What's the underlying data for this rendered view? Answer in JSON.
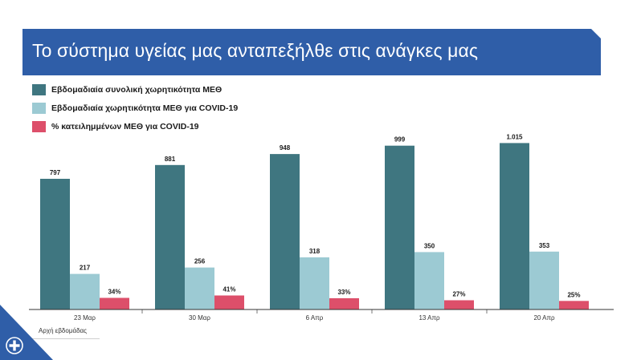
{
  "slide": {
    "title": "Το σύστημα υγείας μας ανταπεξήλθε στις ανάγκες μας"
  },
  "colors": {
    "banner": "#2f5ea8",
    "series": [
      "#3f7680",
      "#9ccad3",
      "#dd4f6a"
    ],
    "axis": "#333333",
    "corner_triangle": "#2f5ea8"
  },
  "legend": [
    {
      "label": "Εβδομαδιαία συνολική χωρητικότητα ΜΕΘ"
    },
    {
      "label": "Εβδομαδιαία χωρητικότητα ΜΕΘ για COVID-19"
    },
    {
      "label": "% κατειλημμένων ΜΕΘ για COVID-19"
    }
  ],
  "chart_data": {
    "type": "bar",
    "categories": [
      "23 Μαρ",
      "30 Μαρ",
      "6 Απρ",
      "13 Απρ",
      "20 Απρ"
    ],
    "series": [
      {
        "name": "Εβδομαδιαία συνολική χωρητικότητα ΜΕΘ",
        "values": [
          797,
          881,
          948,
          999,
          1015
        ],
        "labels": [
          "797",
          "881",
          "948",
          "999",
          "1.015"
        ]
      },
      {
        "name": "Εβδομαδιαία χωρητικότητα ΜΕΘ για COVID-19",
        "values": [
          217,
          256,
          318,
          350,
          353
        ],
        "labels": [
          "217",
          "256",
          "318",
          "350",
          "353"
        ]
      },
      {
        "name": "% κατειλημμένων ΜΕΘ για COVID-19",
        "values": [
          34,
          41,
          33,
          27,
          25
        ],
        "labels": [
          "34%",
          "41%",
          "33%",
          "27%",
          "25%"
        ],
        "unit": "%"
      }
    ],
    "xlabel": "Αρχή εβδομάδας",
    "ylabel": "",
    "ylim": [
      0,
      1030
    ],
    "grid": false,
    "legend_position": "top-left"
  }
}
